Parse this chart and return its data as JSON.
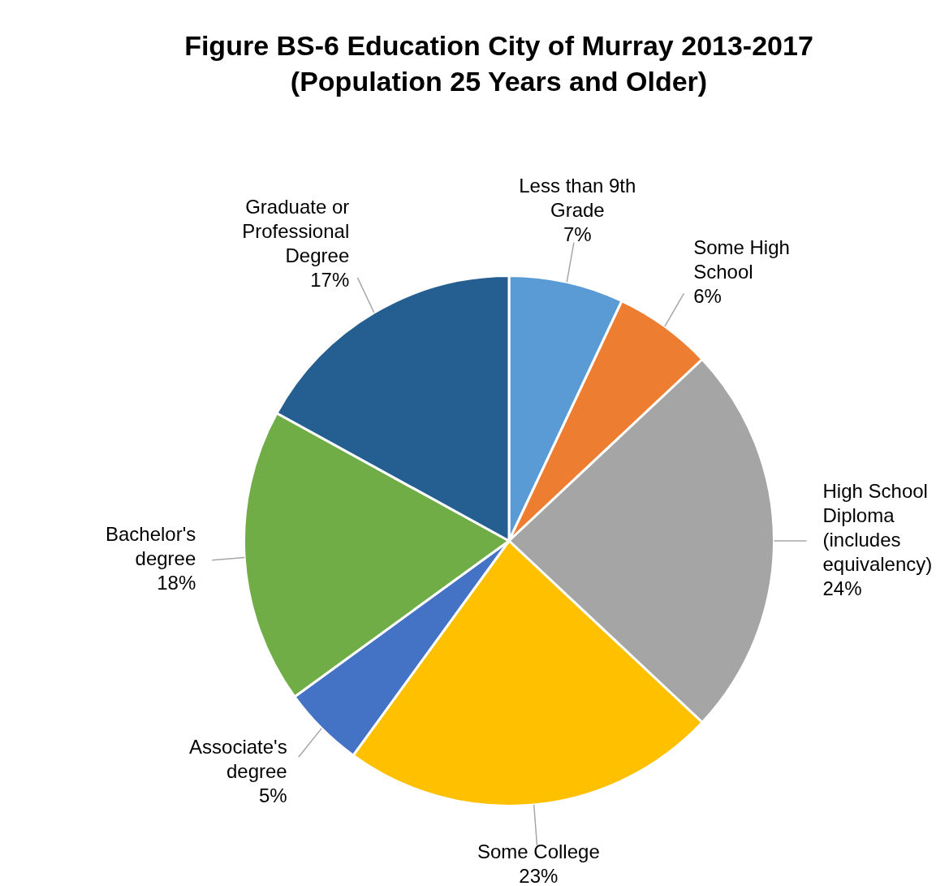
{
  "chart_data": {
    "type": "pie",
    "title": "Figure BS-6 Education City of Murray 2013-2017\n(Population 25 Years and Older)",
    "categories": [
      "Less than 9th Grade",
      "Some High School",
      "High School Diploma (includes equivalency)",
      "Some College",
      "Associate's degree",
      "Bachelor's degree",
      "Graduate or Professional Degree"
    ],
    "values": [
      7,
      6,
      24,
      23,
      5,
      18,
      17
    ],
    "colors": [
      "#5b9bd5",
      "#ed7d31",
      "#a5a5a5",
      "#ffc000",
      "#4472c4",
      "#70ad47",
      "#255e91"
    ],
    "value_labels": [
      "7%",
      "6%",
      "24%",
      "23%",
      "5%",
      "18%",
      "17%"
    ],
    "legend": false
  }
}
